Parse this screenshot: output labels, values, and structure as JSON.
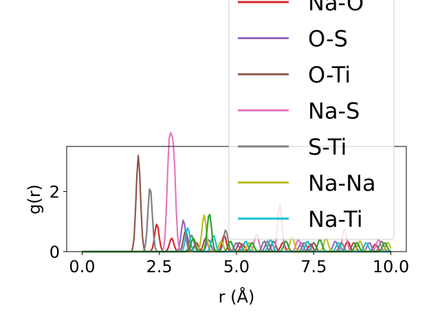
{
  "chart_data": {
    "type": "line",
    "xlabel": "r (Å)",
    "ylabel": "g(r)",
    "xlim": [
      -0.5,
      10.5
    ],
    "ylim": [
      0,
      3.5
    ],
    "xticks": [
      0.0,
      2.5,
      5.0,
      7.5,
      10.0
    ],
    "xtick_labels": [
      "0.0",
      "2.5",
      "5.0",
      "7.5",
      "10.0"
    ],
    "yticks": [
      0,
      2
    ],
    "ytick_labels": [
      "0",
      "2"
    ],
    "grid": false,
    "legend_placement": "upper-right",
    "series": [
      {
        "name": "Na-O",
        "color": "#d62728",
        "peaks": [
          [
            2.42,
            0.92
          ],
          [
            2.9,
            0.45
          ],
          [
            3.7,
            0.3
          ],
          [
            4.6,
            0.55
          ],
          [
            5.2,
            0.25
          ],
          [
            6.5,
            0.3
          ],
          [
            7.4,
            0.25
          ],
          [
            8.6,
            0.35
          ],
          [
            9.5,
            0.25
          ]
        ]
      },
      {
        "name": "O-S",
        "color": "#9467bd",
        "peaks": [
          [
            3.28,
            1.05
          ],
          [
            4.1,
            0.4
          ],
          [
            5.0,
            0.3
          ],
          [
            6.0,
            0.35
          ],
          [
            7.1,
            0.3
          ],
          [
            8.2,
            0.35
          ],
          [
            9.3,
            0.3
          ]
        ]
      },
      {
        "name": "O-Ti",
        "color": "#8c564b",
        "peaks": [
          [
            1.82,
            3.2
          ],
          [
            3.35,
            0.7
          ],
          [
            4.0,
            0.45
          ],
          [
            5.1,
            0.3
          ],
          [
            6.2,
            0.35
          ],
          [
            7.5,
            0.3
          ],
          [
            8.8,
            0.3
          ]
        ]
      },
      {
        "name": "Na-S",
        "color": "#e377c2",
        "peaks": [
          [
            2.82,
            3.35
          ],
          [
            2.96,
            3.1
          ],
          [
            5.65,
            0.6
          ],
          [
            6.4,
            1.57
          ],
          [
            7.0,
            0.4
          ],
          [
            8.5,
            0.75
          ],
          [
            9.6,
            0.4
          ]
        ]
      },
      {
        "name": "S-Ti",
        "color": "#7f7f7f",
        "peaks": [
          [
            2.2,
            2.15
          ],
          [
            3.55,
            0.55
          ],
          [
            4.65,
            0.72
          ],
          [
            5.9,
            0.35
          ],
          [
            7.2,
            0.3
          ],
          [
            8.4,
            0.3
          ],
          [
            9.7,
            0.35
          ]
        ]
      },
      {
        "name": "Na-Na",
        "color": "#bcbd22",
        "peaks": [
          [
            3.95,
            1.22
          ],
          [
            4.5,
            0.35
          ],
          [
            5.4,
            0.3
          ],
          [
            6.8,
            0.5
          ],
          [
            7.9,
            0.45
          ],
          [
            9.0,
            0.35
          ],
          [
            9.9,
            0.3
          ]
        ]
      },
      {
        "name": "Na-Ti",
        "color": "#17becf",
        "peaks": [
          [
            3.42,
            0.8
          ],
          [
            4.25,
            0.55
          ],
          [
            5.3,
            0.35
          ],
          [
            6.1,
            0.4
          ],
          [
            7.3,
            0.35
          ],
          [
            8.3,
            0.3
          ],
          [
            9.2,
            0.3
          ]
        ]
      },
      {
        "name": "",
        "color": "#2ca02c",
        "peaks": [
          [
            3.6,
            0.45
          ],
          [
            4.12,
            1.27
          ],
          [
            4.8,
            0.35
          ],
          [
            5.5,
            0.3
          ],
          [
            6.6,
            0.35
          ],
          [
            7.7,
            0.4
          ],
          [
            8.9,
            0.3
          ],
          [
            9.8,
            0.3
          ]
        ]
      }
    ],
    "legend_entries": [
      "Na-O",
      "O-S",
      "O-Ti",
      "Na-S",
      "S-Ti",
      "Na-Na",
      "Na-Ti"
    ]
  }
}
